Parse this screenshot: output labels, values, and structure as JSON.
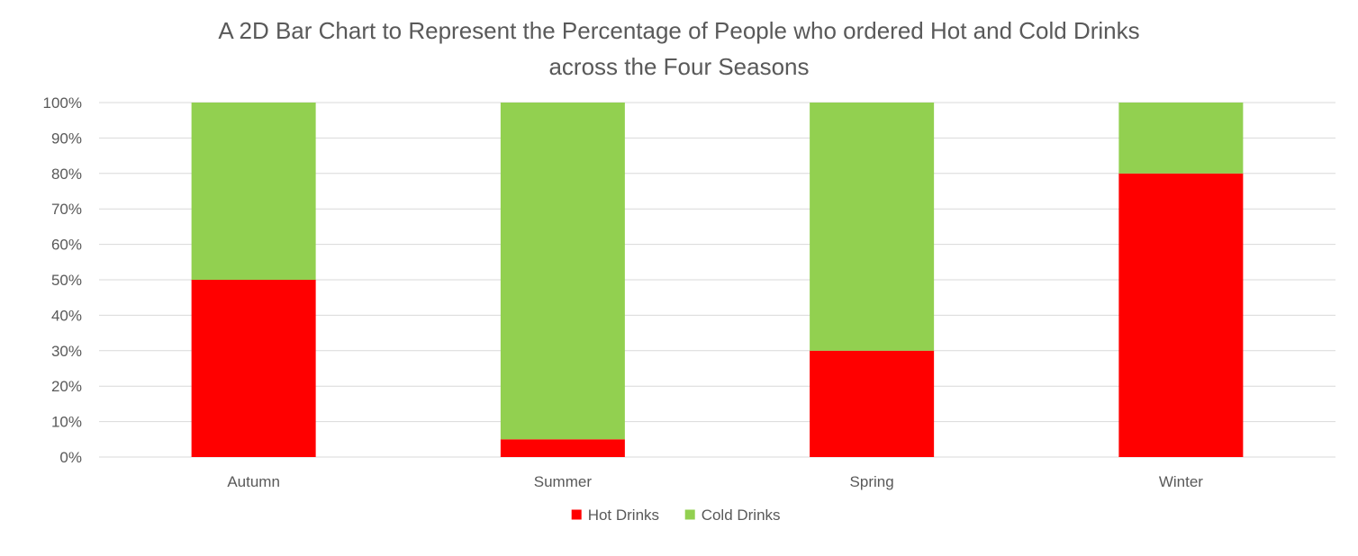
{
  "chart_data": {
    "type": "bar",
    "stacked": true,
    "title_lines": [
      "A 2D Bar Chart to Represent the Percentage of People who ordered Hot and Cold Drinks",
      "across the Four Seasons"
    ],
    "categories": [
      "Autumn",
      "Summer",
      "Spring",
      "Winter"
    ],
    "series": [
      {
        "name": "Hot Drinks",
        "color": "#ff0000",
        "values": [
          50,
          5,
          30,
          80
        ]
      },
      {
        "name": "Cold Drinks",
        "color": "#92d050",
        "values": [
          50,
          95,
          70,
          20
        ]
      }
    ],
    "ylim": [
      0,
      100
    ],
    "y_ticks": [
      "0%",
      "10%",
      "20%",
      "30%",
      "40%",
      "50%",
      "60%",
      "70%",
      "80%",
      "90%",
      "100%"
    ],
    "grid": true,
    "legend_position": "bottom",
    "colors": {
      "text": "#595959",
      "grid": "#d9d9d9"
    }
  }
}
